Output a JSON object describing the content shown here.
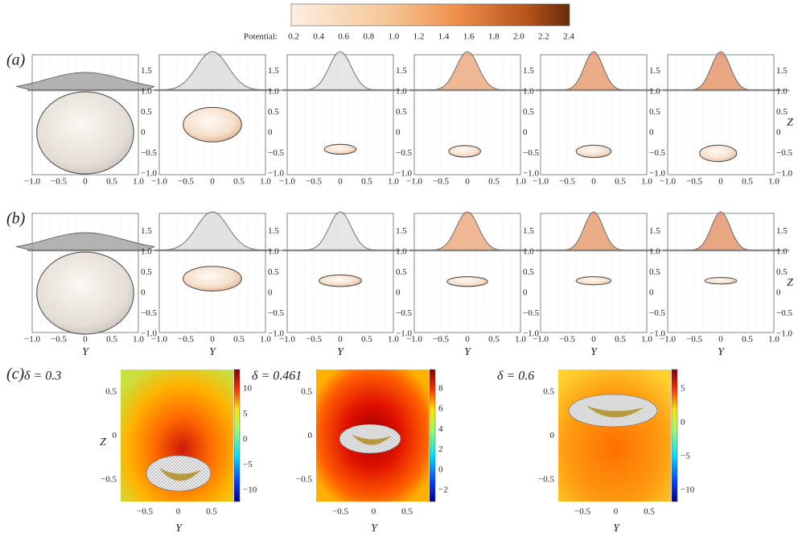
{
  "colorbar": {
    "label": "Potential:",
    "ticks": [
      "0.2",
      "0.4",
      "0.6",
      "0.8",
      "1.0",
      "1.2",
      "1.4",
      "1.6",
      "1.8",
      "2.0",
      "2.2",
      "2.4"
    ]
  },
  "rows": [
    {
      "label": "(a)",
      "axis_label": "Z",
      "yticks": [
        "1.5",
        "1.0",
        "0.5",
        "0",
        "−0.5",
        "−1.0"
      ],
      "xticks": [
        "−1.0",
        "−0.5",
        "0",
        "0.5",
        "1.0"
      ]
    },
    {
      "label": "(b)",
      "axis_label": "Z",
      "yticks": [
        "1.5",
        "1.0",
        "0.5",
        "0",
        "−0.5",
        "−1.0"
      ],
      "xticks": [
        "−1.0",
        "−0.5",
        "0",
        "0.5",
        "1.0"
      ],
      "x_axis_label": "Y"
    }
  ],
  "row_c": {
    "label": "(c)",
    "y_axis_label": "Z",
    "x_axis_label": "Y",
    "panels": [
      {
        "title": "δ = 0.3",
        "yticks": [
          "0.5",
          "0",
          "−0.5"
        ],
        "xticks": [
          "−0.5",
          "0",
          "0.5"
        ],
        "colorbar_ticks": [
          "10",
          "5",
          "0",
          "−5",
          "−10"
        ]
      },
      {
        "title": "δ = 0.461",
        "yticks": [
          "0.5",
          "0",
          "−0.5"
        ],
        "xticks": [
          "−0.5",
          "0",
          "0.5"
        ],
        "colorbar_ticks": [
          "8",
          "6",
          "4",
          "2",
          "0",
          "−2"
        ]
      },
      {
        "title": "δ = 0.6",
        "yticks": [
          "0.5",
          "0",
          "−0.5"
        ],
        "xticks": [
          "−0.5",
          "0",
          "0.5"
        ],
        "colorbar_ticks": [
          "5",
          "0",
          "−5",
          "−10"
        ]
      }
    ]
  }
}
